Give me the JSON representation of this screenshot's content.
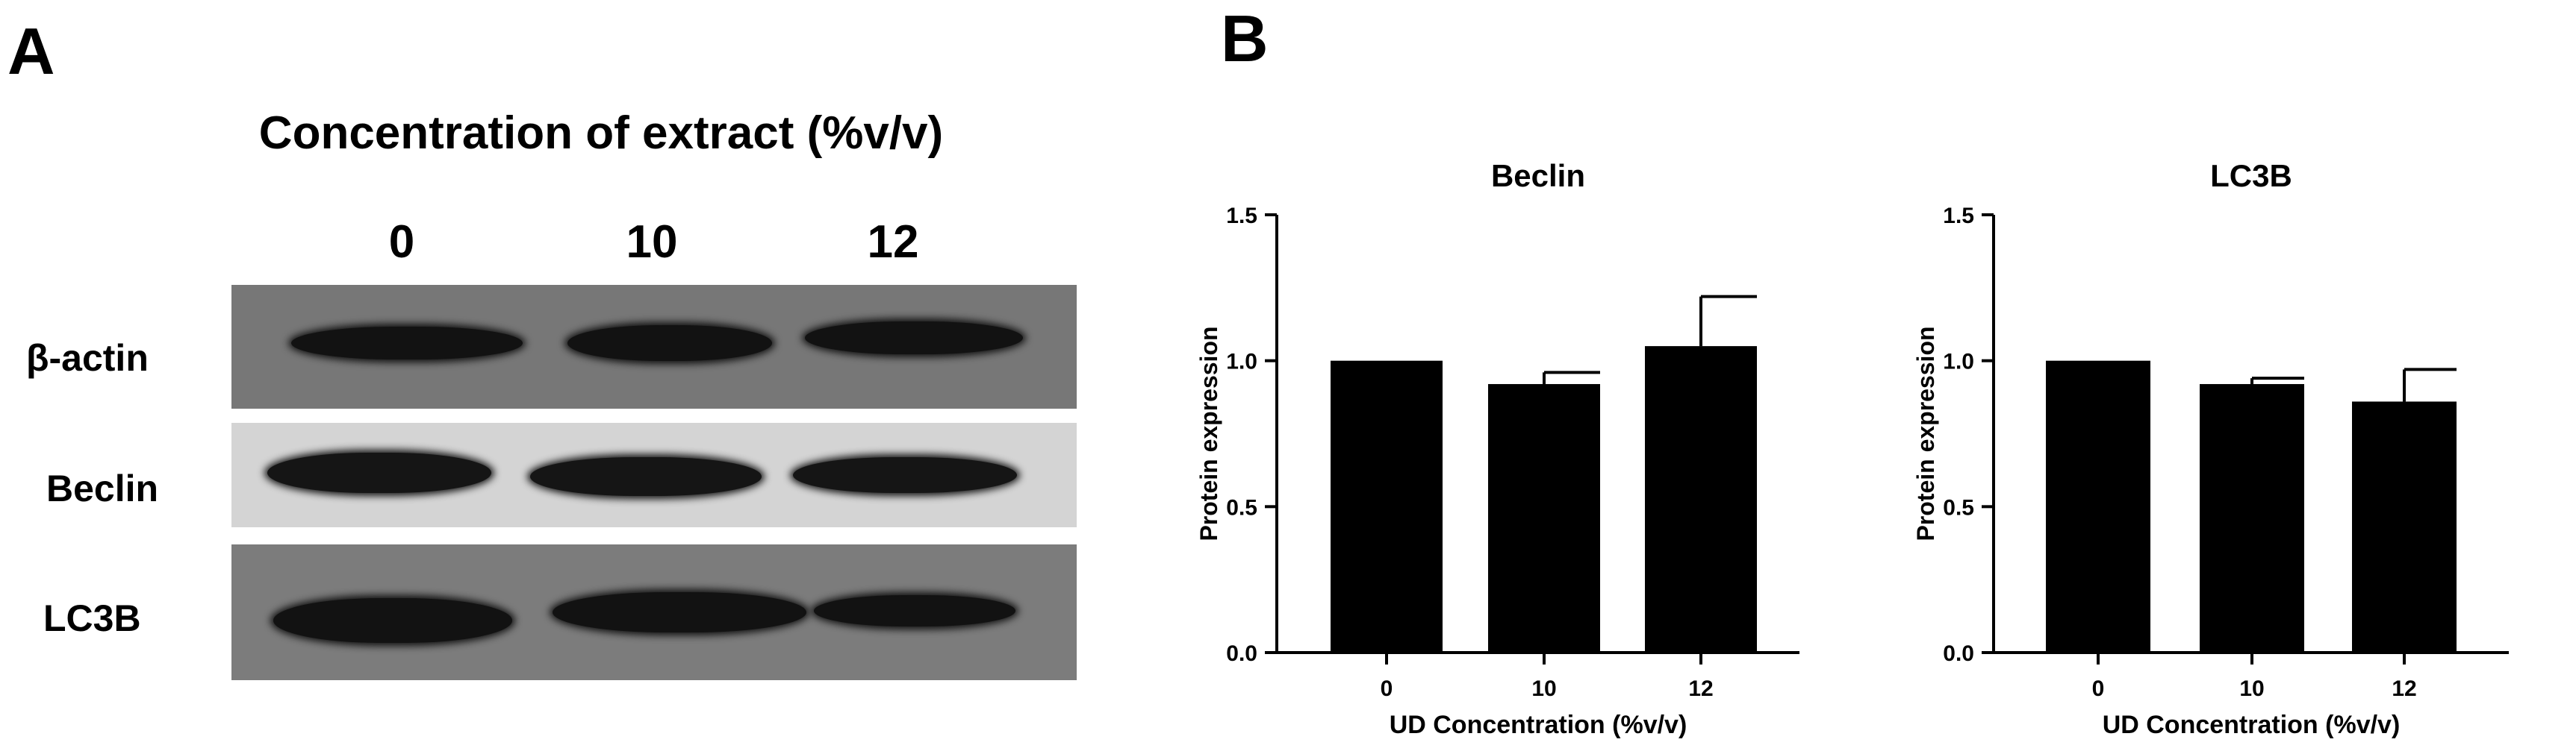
{
  "panel_a": {
    "letter": "A",
    "title": "Concentration of extract (%v/v)",
    "lanes": [
      "0",
      "10",
      "12"
    ],
    "rows": [
      {
        "label": "β-actin",
        "background": "#777777",
        "band_color": "#121212"
      },
      {
        "label": "Beclin",
        "background": "#d4d4d4",
        "band_color": "#151515"
      },
      {
        "label": "LC3B",
        "background": "#7c7c7c",
        "band_color": "#121212"
      }
    ]
  },
  "panel_b": {
    "letter": "B"
  },
  "chart_data": [
    {
      "type": "bar",
      "title": "Beclin",
      "xlabel": "UD Concentration (%v/v)",
      "ylabel": "Protein expression",
      "categories": [
        "0",
        "10",
        "12"
      ],
      "values": [
        1.0,
        0.92,
        1.05
      ],
      "errors": [
        0,
        0.04,
        0.17
      ],
      "ylim": [
        0,
        1.5
      ],
      "yticks": [
        "0.0",
        "0.5",
        "1.0",
        "1.5"
      ],
      "bar_color": "#000000",
      "grid": false
    },
    {
      "type": "bar",
      "title": "LC3B",
      "xlabel": "UD Concentration (%v/v)",
      "ylabel": "Protein expression",
      "categories": [
        "0",
        "10",
        "12"
      ],
      "values": [
        1.0,
        0.92,
        0.86
      ],
      "errors": [
        0,
        0.02,
        0.11
      ],
      "ylim": [
        0,
        1.5
      ],
      "yticks": [
        "0.0",
        "0.5",
        "1.0",
        "1.5"
      ],
      "bar_color": "#000000",
      "grid": false
    }
  ]
}
